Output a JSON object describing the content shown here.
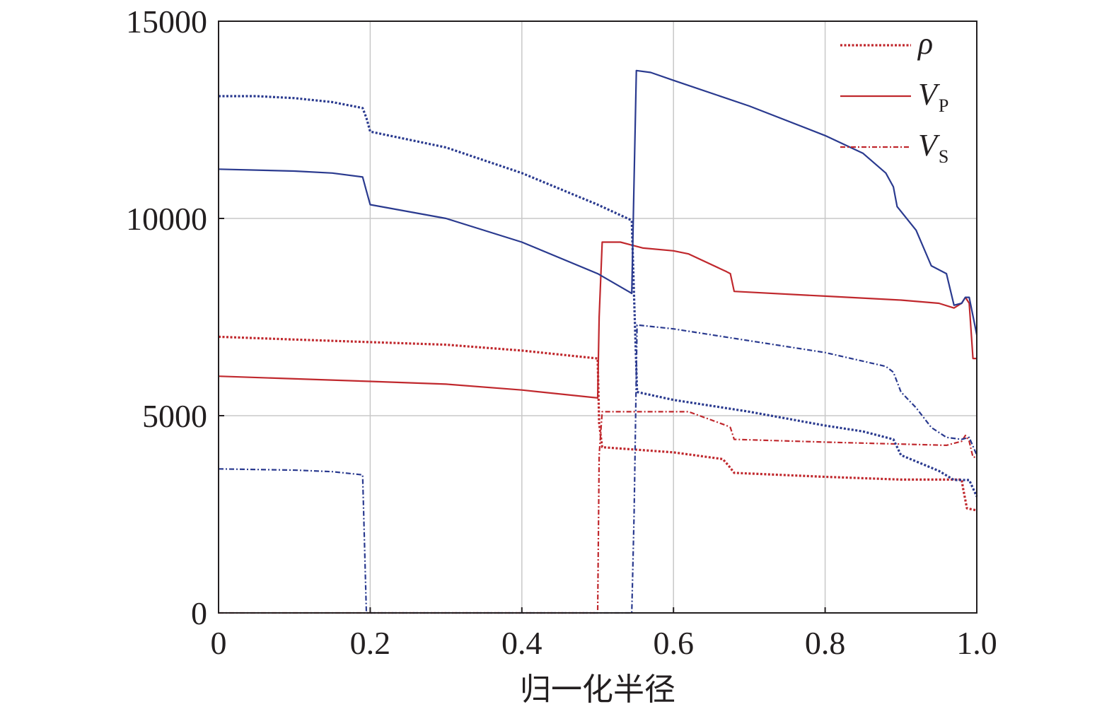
{
  "chart_data": {
    "type": "line",
    "xlabel": "归一化半径",
    "ylabel": "",
    "xlim": [
      0,
      1.0
    ],
    "ylim": [
      0,
      15000
    ],
    "x_ticks": [
      "0",
      "0.2",
      "0.4",
      "0.6",
      "0.8",
      "1.0"
    ],
    "x_tick_values": [
      0,
      0.2,
      0.4,
      0.6,
      0.8,
      1.0
    ],
    "y_ticks": [
      "0",
      "5000",
      "10000",
      "15000"
    ],
    "y_tick_values": [
      0,
      5000,
      10000,
      15000
    ],
    "grid": true,
    "legend_position": "top-right",
    "legend": [
      {
        "label": "ρ",
        "sub": "",
        "style": "dotted",
        "color": "#c0282d"
      },
      {
        "label": "V",
        "sub": "P",
        "style": "solid",
        "color": "#c0282d"
      },
      {
        "label": "V",
        "sub": "S",
        "style": "dashdot",
        "color": "#c0282d"
      }
    ],
    "series": [
      {
        "color": "#c0282d",
        "style": "dotted",
        "points": [
          [
            0,
            7000
          ],
          [
            0.1,
            6930
          ],
          [
            0.3,
            6800
          ],
          [
            0.4,
            6650
          ],
          [
            0.5,
            6450
          ],
          [
            0.502,
            4800
          ],
          [
            0.506,
            4200
          ],
          [
            0.6,
            4070
          ],
          [
            0.665,
            3900
          ],
          [
            0.672,
            3750
          ],
          [
            0.68,
            3550
          ],
          [
            0.8,
            3450
          ],
          [
            0.9,
            3380
          ],
          [
            0.98,
            3380
          ],
          [
            0.982,
            3150
          ],
          [
            0.987,
            2650
          ],
          [
            1.0,
            2600
          ]
        ]
      },
      {
        "color": "#c0282d",
        "style": "solid",
        "points": [
          [
            0,
            6000
          ],
          [
            0.2,
            5870
          ],
          [
            0.3,
            5800
          ],
          [
            0.4,
            5650
          ],
          [
            0.5,
            5450
          ],
          [
            0.502,
            7500
          ],
          [
            0.506,
            9400
          ],
          [
            0.53,
            9400
          ],
          [
            0.56,
            9250
          ],
          [
            0.6,
            9180
          ],
          [
            0.62,
            9100
          ],
          [
            0.67,
            8650
          ],
          [
            0.675,
            8600
          ],
          [
            0.68,
            8150
          ],
          [
            0.8,
            8030
          ],
          [
            0.9,
            7930
          ],
          [
            0.95,
            7850
          ],
          [
            0.97,
            7730
          ],
          [
            0.98,
            7850
          ],
          [
            0.985,
            8000
          ],
          [
            0.99,
            7850
          ],
          [
            0.995,
            6450
          ],
          [
            1.0,
            6450
          ]
        ]
      },
      {
        "color": "#c0282d",
        "style": "dashdot",
        "points": [
          [
            0,
            0
          ],
          [
            0.5,
            0
          ],
          [
            0.502,
            4000
          ],
          [
            0.506,
            5100
          ],
          [
            0.62,
            5100
          ],
          [
            0.67,
            4750
          ],
          [
            0.675,
            4700
          ],
          [
            0.68,
            4400
          ],
          [
            0.8,
            4330
          ],
          [
            0.9,
            4280
          ],
          [
            0.96,
            4250
          ],
          [
            0.98,
            4350
          ],
          [
            0.985,
            4500
          ],
          [
            0.99,
            4350
          ],
          [
            0.995,
            3950
          ],
          [
            1.0,
            3950
          ]
        ]
      },
      {
        "color": "#2a3a8f",
        "style": "dotted",
        "points": [
          [
            0,
            13100
          ],
          [
            0.05,
            13100
          ],
          [
            0.1,
            13050
          ],
          [
            0.15,
            12950
          ],
          [
            0.19,
            12800
          ],
          [
            0.195,
            12550
          ],
          [
            0.2,
            12200
          ],
          [
            0.3,
            11800
          ],
          [
            0.4,
            11150
          ],
          [
            0.5,
            10350
          ],
          [
            0.545,
            9950
          ],
          [
            0.548,
            8000
          ],
          [
            0.552,
            5600
          ],
          [
            0.6,
            5400
          ],
          [
            0.7,
            5100
          ],
          [
            0.8,
            4750
          ],
          [
            0.85,
            4600
          ],
          [
            0.89,
            4400
          ],
          [
            0.9,
            4000
          ],
          [
            0.95,
            3600
          ],
          [
            0.97,
            3370
          ],
          [
            0.99,
            3370
          ],
          [
            1.0,
            2950
          ]
        ]
      },
      {
        "color": "#2a3a8f",
        "style": "solid",
        "points": [
          [
            0,
            11250
          ],
          [
            0.1,
            11200
          ],
          [
            0.15,
            11150
          ],
          [
            0.19,
            11050
          ],
          [
            0.195,
            10700
          ],
          [
            0.2,
            10350
          ],
          [
            0.3,
            10000
          ],
          [
            0.4,
            9400
          ],
          [
            0.5,
            8600
          ],
          [
            0.545,
            8100
          ],
          [
            0.548,
            11000
          ],
          [
            0.551,
            13750
          ],
          [
            0.57,
            13700
          ],
          [
            0.6,
            13500
          ],
          [
            0.7,
            12850
          ],
          [
            0.8,
            12100
          ],
          [
            0.85,
            11650
          ],
          [
            0.88,
            11150
          ],
          [
            0.89,
            10800
          ],
          [
            0.895,
            10300
          ],
          [
            0.92,
            9700
          ],
          [
            0.94,
            8800
          ],
          [
            0.96,
            8600
          ],
          [
            0.97,
            7800
          ],
          [
            0.98,
            7850
          ],
          [
            0.985,
            8000
          ],
          [
            0.99,
            8000
          ],
          [
            1.0,
            7050
          ]
        ]
      },
      {
        "color": "#2a3a8f",
        "style": "dashdot",
        "points": [
          [
            0,
            3650
          ],
          [
            0.1,
            3620
          ],
          [
            0.15,
            3580
          ],
          [
            0.19,
            3500
          ],
          [
            0.195,
            0
          ],
          [
            0.545,
            0
          ],
          [
            0.548,
            2500
          ],
          [
            0.552,
            7300
          ],
          [
            0.6,
            7200
          ],
          [
            0.7,
            6900
          ],
          [
            0.8,
            6600
          ],
          [
            0.88,
            6250
          ],
          [
            0.89,
            6100
          ],
          [
            0.9,
            5600
          ],
          [
            0.92,
            5200
          ],
          [
            0.94,
            4700
          ],
          [
            0.96,
            4450
          ],
          [
            0.98,
            4400
          ],
          [
            0.99,
            4450
          ],
          [
            1.0,
            4000
          ]
        ]
      }
    ]
  }
}
